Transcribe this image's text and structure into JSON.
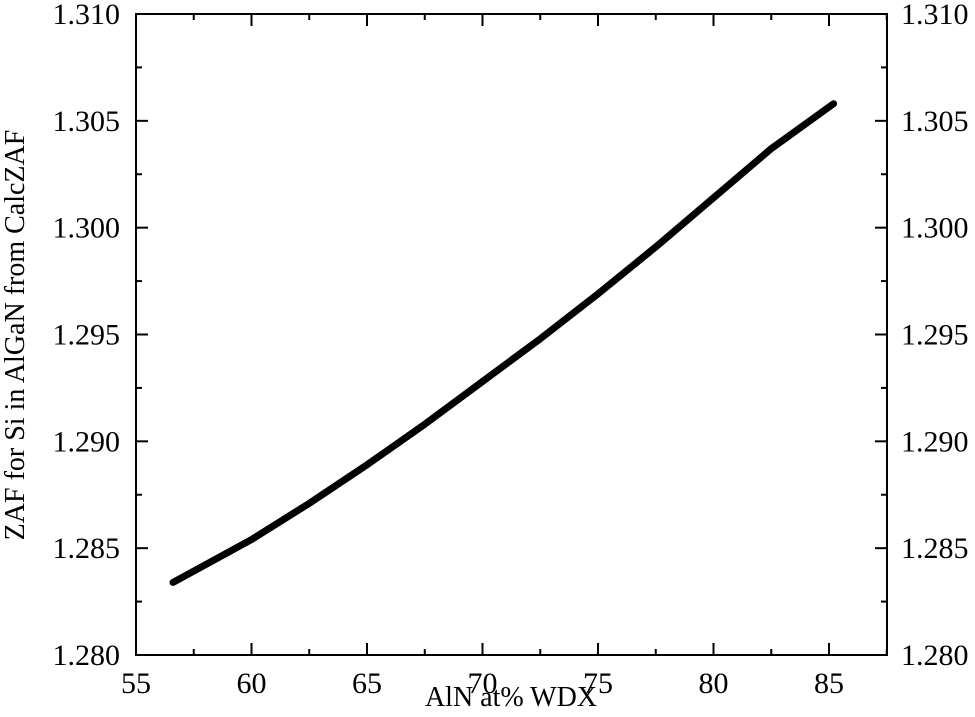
{
  "chart_data": {
    "type": "line",
    "title": "",
    "xlabel": "AlN at% WDX",
    "ylabel": "ZAF for Si in AlGaN from CalcZAF",
    "xlim": [
      55,
      87.5
    ],
    "ylim": [
      1.28,
      1.31
    ],
    "x_ticks": [
      "55",
      "60",
      "65",
      "70",
      "75",
      "80",
      "85"
    ],
    "y_ticks": [
      "1.280",
      "1.285",
      "1.290",
      "1.295",
      "1.300",
      "1.305",
      "1.310"
    ],
    "y_ticks_right": [
      "1.280",
      "1.285",
      "1.290",
      "1.295",
      "1.300",
      "1.305",
      "1.310"
    ],
    "grid": false,
    "legend": null,
    "series": [
      {
        "name": "ZAF",
        "color": "#000000",
        "x": [
          56.6,
          60,
          62.5,
          65,
          67.5,
          70,
          72.5,
          75,
          77.5,
          80,
          82.5,
          85.2
        ],
        "y": [
          1.2834,
          1.2854,
          1.2871,
          1.2889,
          1.2908,
          1.2928,
          1.2948,
          1.2969,
          1.2991,
          1.3014,
          1.3037,
          1.3058
        ]
      }
    ]
  }
}
